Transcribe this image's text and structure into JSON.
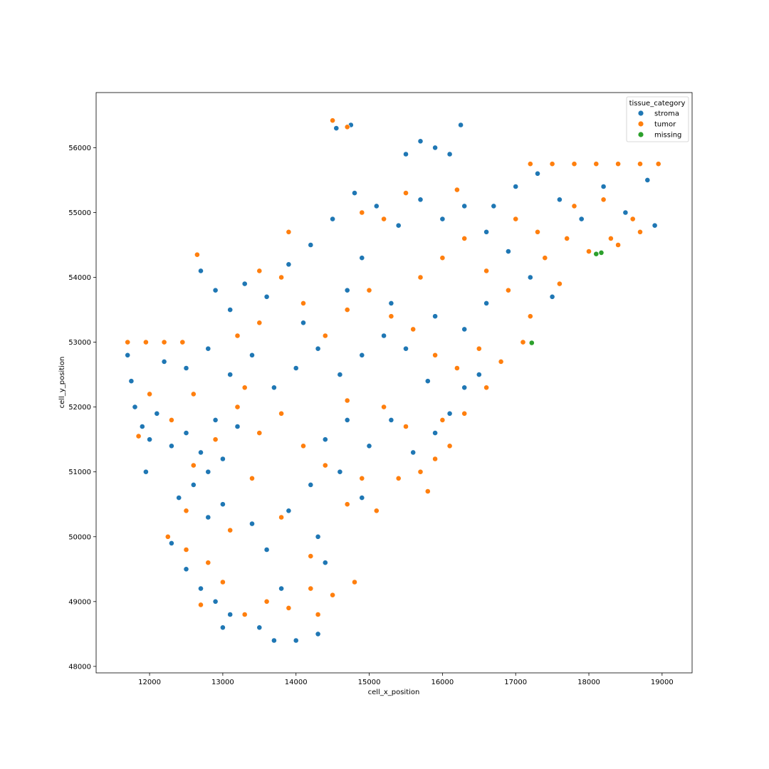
{
  "chart_data": {
    "type": "scatter",
    "title": "",
    "xlabel": "cell_x_position",
    "ylabel": "cell_y_position",
    "xlim": [
      11270,
      19410
    ],
    "ylim": [
      47900,
      56850
    ],
    "x_ticks": [
      12000,
      13000,
      14000,
      15000,
      16000,
      17000,
      18000,
      19000
    ],
    "y_ticks": [
      48000,
      49000,
      50000,
      51000,
      52000,
      53000,
      54000,
      55000,
      56000
    ],
    "grid": false,
    "legend": {
      "title": "tissue_category",
      "placement": "top-right",
      "entries": [
        {
          "name": "stroma",
          "color": "#1f77b4"
        },
        {
          "name": "tumor",
          "color": "#ff7f0e"
        },
        {
          "name": "missing",
          "color": "#2ca02c"
        }
      ]
    },
    "series": [
      {
        "name": "stroma",
        "color": "#1f77b4",
        "points": [
          [
            11700,
            52800
          ],
          [
            11750,
            52400
          ],
          [
            11800,
            52000
          ],
          [
            11900,
            51700
          ],
          [
            12000,
            51500
          ],
          [
            12100,
            51900
          ],
          [
            12300,
            51400
          ],
          [
            12500,
            51600
          ],
          [
            12700,
            51300
          ],
          [
            12900,
            51800
          ],
          [
            13000,
            51200
          ],
          [
            12400,
            50600
          ],
          [
            12600,
            50800
          ],
          [
            12800,
            50300
          ],
          [
            13000,
            50500
          ],
          [
            12300,
            49900
          ],
          [
            12500,
            49500
          ],
          [
            12700,
            49200
          ],
          [
            12900,
            49000
          ],
          [
            13100,
            48800
          ],
          [
            13500,
            48600
          ],
          [
            13700,
            48400
          ],
          [
            14000,
            48400
          ],
          [
            14300,
            48500
          ],
          [
            13800,
            49200
          ],
          [
            13600,
            49800
          ],
          [
            13400,
            50200
          ],
          [
            13900,
            50400
          ],
          [
            14200,
            50800
          ],
          [
            14600,
            51000
          ],
          [
            14900,
            50600
          ],
          [
            14400,
            51500
          ],
          [
            14700,
            51800
          ],
          [
            15000,
            51400
          ],
          [
            15300,
            51800
          ],
          [
            15600,
            51300
          ],
          [
            15900,
            51600
          ],
          [
            16100,
            51900
          ],
          [
            16300,
            52300
          ],
          [
            16500,
            52500
          ],
          [
            15800,
            52400
          ],
          [
            15500,
            52900
          ],
          [
            15200,
            53100
          ],
          [
            14900,
            52800
          ],
          [
            14600,
            52500
          ],
          [
            14300,
            52900
          ],
          [
            14000,
            52600
          ],
          [
            13700,
            52300
          ],
          [
            13400,
            52800
          ],
          [
            13100,
            52500
          ],
          [
            12800,
            52900
          ],
          [
            12500,
            52600
          ],
          [
            12200,
            52700
          ],
          [
            13100,
            53500
          ],
          [
            13300,
            53900
          ],
          [
            13600,
            53700
          ],
          [
            13900,
            54200
          ],
          [
            14200,
            54500
          ],
          [
            14500,
            54900
          ],
          [
            14800,
            55300
          ],
          [
            15100,
            55100
          ],
          [
            15400,
            54800
          ],
          [
            15700,
            55200
          ],
          [
            16000,
            54900
          ],
          [
            16300,
            55100
          ],
          [
            16600,
            54700
          ],
          [
            16900,
            54400
          ],
          [
            17200,
            54000
          ],
          [
            17500,
            53700
          ],
          [
            17000,
            55400
          ],
          [
            17300,
            55600
          ],
          [
            17600,
            55200
          ],
          [
            17900,
            54900
          ],
          [
            18200,
            55400
          ],
          [
            18500,
            55000
          ],
          [
            18800,
            55500
          ],
          [
            18900,
            54800
          ],
          [
            15500,
            55900
          ],
          [
            15700,
            56100
          ],
          [
            15900,
            56000
          ],
          [
            16100,
            55900
          ],
          [
            16250,
            56350
          ],
          [
            14550,
            56300
          ],
          [
            14750,
            56350
          ],
          [
            12700,
            54100
          ],
          [
            12900,
            53800
          ],
          [
            13000,
            48600
          ],
          [
            11950,
            51000
          ],
          [
            14100,
            53300
          ],
          [
            14700,
            53800
          ],
          [
            15300,
            53600
          ],
          [
            15900,
            53400
          ],
          [
            16300,
            53200
          ],
          [
            16600,
            53600
          ],
          [
            14400,
            49600
          ],
          [
            14300,
            50000
          ],
          [
            13200,
            51700
          ],
          [
            12800,
            51000
          ],
          [
            14900,
            54300
          ],
          [
            16700,
            55100
          ]
        ]
      },
      {
        "name": "tumor",
        "color": "#ff7f0e",
        "points": [
          [
            11700,
            53000
          ],
          [
            11950,
            53000
          ],
          [
            12200,
            53000
          ],
          [
            12450,
            53000
          ],
          [
            12000,
            52200
          ],
          [
            12300,
            51800
          ],
          [
            12600,
            52200
          ],
          [
            12900,
            51500
          ],
          [
            13200,
            52000
          ],
          [
            13500,
            51600
          ],
          [
            13800,
            51900
          ],
          [
            14100,
            51400
          ],
          [
            14400,
            51100
          ],
          [
            14700,
            50500
          ],
          [
            14900,
            50900
          ],
          [
            13400,
            50900
          ],
          [
            13100,
            50100
          ],
          [
            12800,
            49600
          ],
          [
            12500,
            49800
          ],
          [
            12700,
            48950
          ],
          [
            13300,
            48800
          ],
          [
            13600,
            49000
          ],
          [
            13900,
            48900
          ],
          [
            14200,
            49200
          ],
          [
            14500,
            49100
          ],
          [
            14200,
            49700
          ],
          [
            13800,
            50300
          ],
          [
            15200,
            52000
          ],
          [
            15500,
            51700
          ],
          [
            15700,
            51000
          ],
          [
            15900,
            51200
          ],
          [
            16100,
            51400
          ],
          [
            16300,
            51900
          ],
          [
            16600,
            52300
          ],
          [
            16800,
            52700
          ],
          [
            15900,
            52800
          ],
          [
            15600,
            53200
          ],
          [
            15300,
            53400
          ],
          [
            15000,
            53800
          ],
          [
            14700,
            53500
          ],
          [
            14400,
            53100
          ],
          [
            14100,
            53600
          ],
          [
            13800,
            54000
          ],
          [
            13500,
            53300
          ],
          [
            13200,
            53100
          ],
          [
            15700,
            54000
          ],
          [
            16000,
            54300
          ],
          [
            16300,
            54600
          ],
          [
            16600,
            54100
          ],
          [
            16900,
            53800
          ],
          [
            17200,
            53400
          ],
          [
            17100,
            53000
          ],
          [
            17400,
            54300
          ],
          [
            17700,
            54600
          ],
          [
            18000,
            54400
          ],
          [
            17200,
            55750
          ],
          [
            17500,
            55750
          ],
          [
            17800,
            55750
          ],
          [
            18100,
            55750
          ],
          [
            18400,
            55750
          ],
          [
            18700,
            55750
          ],
          [
            18950,
            55750
          ],
          [
            18300,
            54600
          ],
          [
            18600,
            54900
          ],
          [
            18200,
            55200
          ],
          [
            17800,
            55100
          ],
          [
            14500,
            56420
          ],
          [
            14700,
            56320
          ],
          [
            16200,
            55350
          ],
          [
            15200,
            54900
          ],
          [
            15500,
            55300
          ],
          [
            14900,
            55000
          ],
          [
            12650,
            54350
          ],
          [
            13500,
            54100
          ],
          [
            13900,
            54700
          ],
          [
            11850,
            51550
          ],
          [
            12250,
            50000
          ],
          [
            12500,
            50400
          ],
          [
            13000,
            49300
          ],
          [
            14300,
            48800
          ],
          [
            14800,
            49300
          ],
          [
            15100,
            50400
          ],
          [
            15400,
            50900
          ],
          [
            15800,
            50700
          ],
          [
            16000,
            51800
          ],
          [
            16200,
            52600
          ],
          [
            16500,
            52900
          ],
          [
            17000,
            54900
          ],
          [
            17300,
            54700
          ],
          [
            17600,
            53900
          ],
          [
            18400,
            54500
          ],
          [
            18700,
            54700
          ],
          [
            14700,
            52100
          ],
          [
            13300,
            52300
          ],
          [
            12600,
            51100
          ]
        ]
      },
      {
        "name": "missing",
        "color": "#2ca02c",
        "points": [
          [
            18170,
            54380
          ],
          [
            18100,
            54360
          ],
          [
            17220,
            52990
          ]
        ]
      }
    ]
  }
}
